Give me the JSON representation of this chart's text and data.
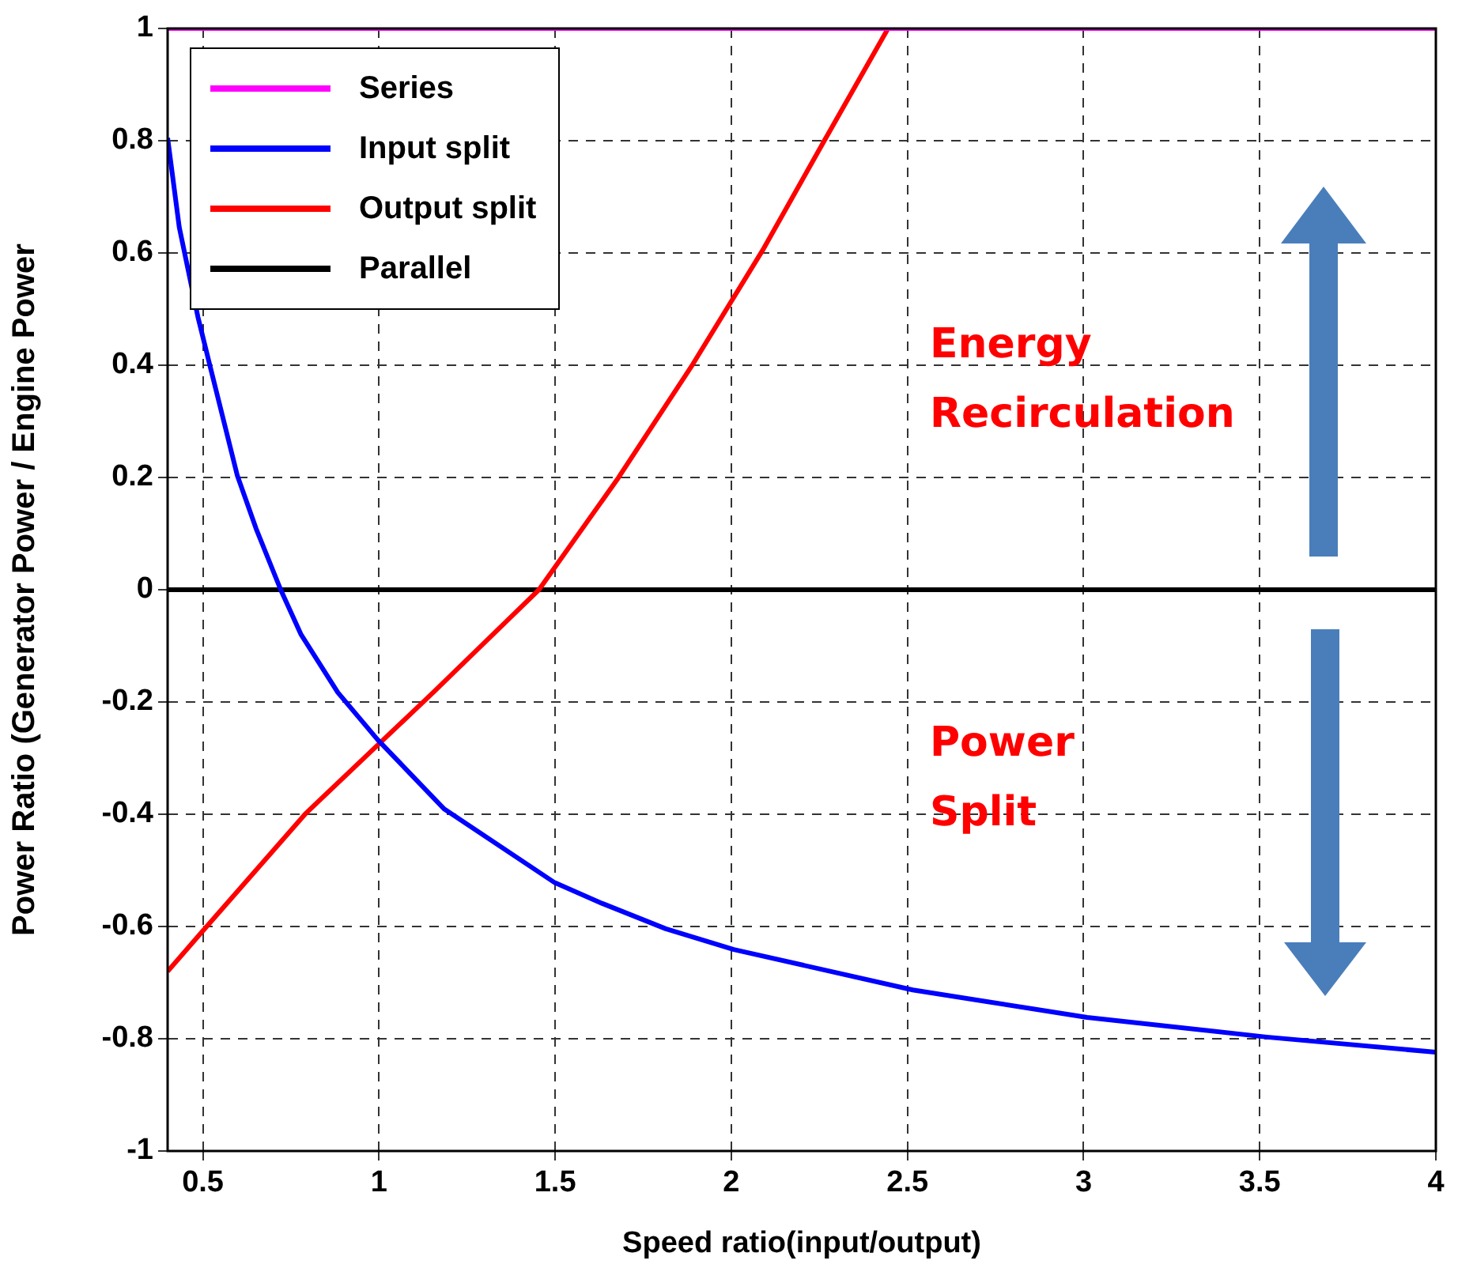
{
  "chart_data": {
    "type": "line",
    "xlabel": "Speed ratio(input/output)",
    "ylabel": "Power Ratio (Generator Power / Engine Power",
    "xlim": [
      0.4,
      4
    ],
    "xticks": [
      0.5,
      1,
      1.5,
      2,
      2.5,
      3,
      3.5,
      4
    ],
    "ylim": [
      -1,
      1
    ],
    "yticks": [
      -1,
      -0.8,
      -0.6,
      -0.4,
      -0.2,
      0,
      0.2,
      0.4,
      0.6,
      0.8,
      1
    ],
    "grid": true,
    "legend": "top left",
    "marker": "none",
    "line_style": "solid",
    "annotations": [
      "Energy Recirculation",
      "Power Split"
    ],
    "series": [
      {
        "name": "Series",
        "color": "#ff00ff",
        "x": [
          0.4,
          4
        ],
        "values": [
          1,
          1
        ]
      },
      {
        "name": "Input split",
        "color": "#0000ff",
        "x": [
          0.4,
          0.433,
          0.486,
          0.523,
          0.598,
          0.651,
          0.721,
          0.778,
          0.883,
          0.996,
          1.184,
          1.499,
          1.634,
          1.814,
          2.007,
          2.515,
          3.01,
          3.52,
          4.0
        ],
        "values": [
          0.805,
          0.646,
          0.486,
          0.392,
          0.203,
          0.109,
          0,
          -0.079,
          -0.183,
          -0.267,
          -0.39,
          -0.522,
          -0.559,
          -0.604,
          -0.641,
          -0.713,
          -0.762,
          -0.797,
          -0.824
        ]
      },
      {
        "name": "Output split",
        "color": "#ff0000",
        "x": [
          0.4,
          0.508,
          0.793,
          0.996,
          1.154,
          1.454,
          1.679,
          1.89,
          2.092,
          2.265,
          2.445
        ],
        "values": [
          -0.68,
          -0.602,
          -0.398,
          -0.277,
          -0.183,
          0,
          0.199,
          0.401,
          0.608,
          0.801,
          1.0
        ]
      },
      {
        "name": "Parallel",
        "color": "#000000",
        "x": [
          0.4,
          4
        ],
        "values": [
          0,
          0
        ]
      }
    ]
  }
}
